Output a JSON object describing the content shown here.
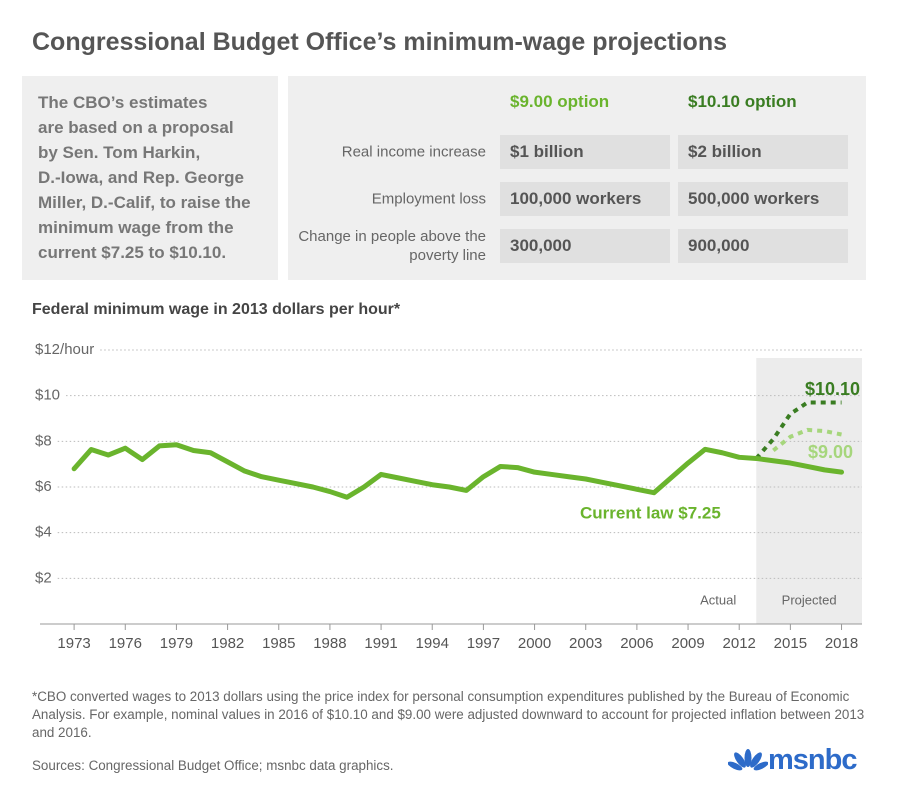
{
  "title": "Congressional Budget Office’s minimum-wage projections",
  "intro": [
    "The CBO’s estimates",
    "are based on a proposal",
    "by Sen. Tom Harkin,",
    "D.-Iowa, and Rep. George",
    "Miller, D.-Calif, to raise the",
    "minimum wage from the",
    "current $7.25 to $10.10."
  ],
  "table": {
    "columns": [
      "$9.00 option",
      "$10.10 option"
    ],
    "rows": [
      {
        "label": "Real income increase",
        "cells": [
          "$1 billion",
          "$2 billion"
        ]
      },
      {
        "label": "Employment loss",
        "cells": [
          "100,000 workers",
          "500,000 workers"
        ]
      },
      {
        "label": "Change in people above the poverty line",
        "cells": [
          "300,000",
          "900,000"
        ]
      }
    ]
  },
  "chart_data": {
    "type": "line",
    "title": "Federal minimum wage in 2013 dollars per hour*",
    "x": [
      1973,
      1974,
      1975,
      1976,
      1977,
      1978,
      1979,
      1980,
      1981,
      1982,
      1983,
      1984,
      1985,
      1986,
      1987,
      1988,
      1989,
      1990,
      1991,
      1992,
      1993,
      1994,
      1995,
      1996,
      1997,
      1998,
      1999,
      2000,
      2001,
      2002,
      2003,
      2004,
      2005,
      2006,
      2007,
      2008,
      2009,
      2010,
      2011,
      2012,
      2013,
      2014,
      2015,
      2016,
      2017,
      2018
    ],
    "series": [
      {
        "name": "Current law $7.25",
        "color": "#6ab42d",
        "dashed": false,
        "values": [
          6.8,
          7.64,
          7.4,
          7.7,
          7.2,
          7.8,
          7.85,
          7.6,
          7.5,
          7.1,
          6.7,
          6.45,
          6.3,
          6.15,
          6.0,
          5.8,
          5.55,
          6.0,
          6.55,
          6.4,
          6.25,
          6.1,
          6.0,
          5.85,
          6.45,
          6.9,
          6.85,
          6.65,
          6.55,
          6.45,
          6.35,
          6.2,
          6.05,
          5.9,
          5.75,
          6.4,
          7.05,
          7.65,
          7.5,
          7.3,
          7.25,
          7.15,
          7.05,
          6.9,
          6.75,
          6.65
        ]
      },
      {
        "name": "$10.10",
        "color": "#3a7d22",
        "dashed": true,
        "values": [
          null,
          null,
          null,
          null,
          null,
          null,
          null,
          null,
          null,
          null,
          null,
          null,
          null,
          null,
          null,
          null,
          null,
          null,
          null,
          null,
          null,
          null,
          null,
          null,
          null,
          null,
          null,
          null,
          null,
          null,
          null,
          null,
          null,
          null,
          null,
          null,
          null,
          null,
          null,
          null,
          7.25,
          8.1,
          9.2,
          9.7,
          9.7,
          9.7
        ]
      },
      {
        "name": "$9.00",
        "color": "#a6d67c",
        "dashed": true,
        "values": [
          null,
          null,
          null,
          null,
          null,
          null,
          null,
          null,
          null,
          null,
          null,
          null,
          null,
          null,
          null,
          null,
          null,
          null,
          null,
          null,
          null,
          null,
          null,
          null,
          null,
          null,
          null,
          null,
          null,
          null,
          null,
          null,
          null,
          null,
          null,
          null,
          null,
          null,
          null,
          null,
          null,
          7.6,
          8.2,
          8.5,
          8.45,
          8.3
        ]
      }
    ],
    "xlim": [
      1971,
      2019.2
    ],
    "xticks": [
      1973,
      1976,
      1979,
      1982,
      1985,
      1988,
      1991,
      1994,
      1997,
      2000,
      2003,
      2006,
      2009,
      2012,
      2015,
      2018
    ],
    "ylim": [
      0,
      12
    ],
    "yticks": [
      {
        "value": 2,
        "label": "$2"
      },
      {
        "value": 4,
        "label": "$4"
      },
      {
        "value": 6,
        "label": "$6"
      },
      {
        "value": 8,
        "label": "$8"
      },
      {
        "value": 10,
        "label": "$10"
      },
      {
        "value": 12,
        "label": "$12/hour"
      }
    ],
    "grid": true,
    "projection_start": 2013,
    "actual_label": "Actual",
    "projected_label": "Projected"
  },
  "footnote": "*CBO converted wages to 2013 dollars using the price index for personal consumption expenditures published by the Bureau of Economic Analysis. For example, nominal values in 2016 of $10.10 and $9.00 were adjusted downward to account for projected inflation between 2013 and 2016.",
  "sources": "Sources:  Congressional Budget Office; msnbc data graphics.",
  "logo": "msnbc"
}
